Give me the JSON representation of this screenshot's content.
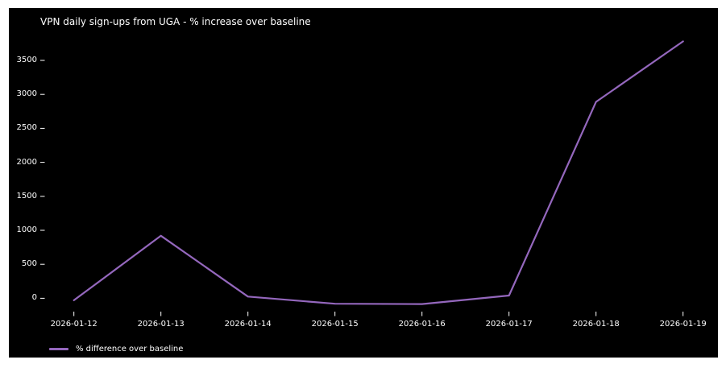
{
  "page": {
    "background": "#ffffff",
    "panel_background": "#000000",
    "text_color": "#ffffff"
  },
  "chart_data": {
    "type": "line",
    "title": "VPN daily sign-ups from UGA - % increase over baseline",
    "categories": [
      "2026-01-12",
      "2026-01-13",
      "2026-01-14",
      "2026-01-15",
      "2026-01-16",
      "2026-01-17",
      "2026-01-18",
      "2026-01-19"
    ],
    "series": [
      {
        "name": "% difference over baseline",
        "color": "#9467bd",
        "values": [
          -30,
          920,
          25,
          -80,
          -85,
          40,
          2890,
          3780
        ]
      }
    ],
    "xlabel": "",
    "ylabel": "",
    "y_ticks": [
      0,
      500,
      1000,
      1500,
      2000,
      2500,
      3000,
      3500
    ],
    "ylim": [
      -250,
      3900
    ],
    "grid": false,
    "legend_position": "lower-left"
  }
}
